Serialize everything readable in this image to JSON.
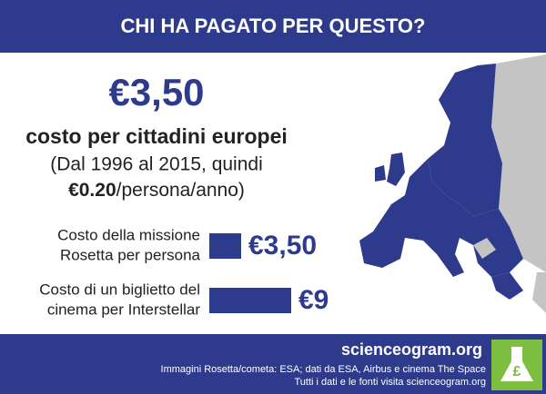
{
  "header": {
    "title": "CHI HA PAGATO PER QUESTO?"
  },
  "headline": {
    "amount": "€3,50",
    "subtitle": "costo per cittadini europei",
    "note_line1": "(Dal 1996 al 2015, quindi",
    "note_bold": "€0.20",
    "note_rest": "/persona/anno)"
  },
  "comparison": {
    "items": [
      {
        "label_lines": [
          "Costo della missione",
          "Rosetta per persona"
        ],
        "value": 3.5,
        "value_label": "€3,50"
      },
      {
        "label_lines": [
          "Costo di un biglietto del",
          "cinema per Interstellar"
        ],
        "value": 9,
        "value_label": "€9"
      }
    ]
  },
  "footer": {
    "site": "scienceogram.org",
    "credits": "Immagini Rosetta/cometa: ESA; dati da ESA, Airbus e cinema The Space",
    "sources": "Tutti i dati e le fonti visita scienceogram.org"
  }
}
